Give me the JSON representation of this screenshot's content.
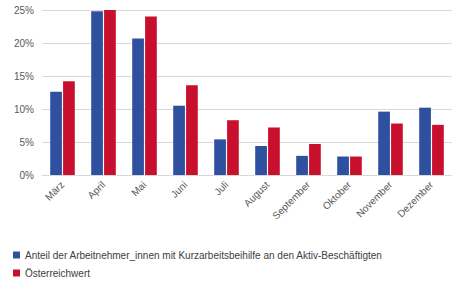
{
  "chart_data": {
    "type": "bar",
    "categories": [
      "März",
      "April",
      "Mai",
      "Juni",
      "Juli",
      "August",
      "September",
      "Oktober",
      "November",
      "Dezember"
    ],
    "series": [
      {
        "name": "Anteil der Arbeitnehmer_innen mit Kurzarbeitsbeihilfe an den Aktiv-Beschäftigten",
        "color": "#2f4f9f",
        "values": [
          12.6,
          24.8,
          20.7,
          10.5,
          5.4,
          4.4,
          2.9,
          2.8,
          9.6,
          10.2
        ]
      },
      {
        "name": "Österreichwert",
        "color": "#c8102e",
        "values": [
          14.2,
          25.0,
          24.0,
          13.6,
          8.3,
          7.2,
          4.7,
          2.8,
          7.8,
          7.6
        ]
      }
    ],
    "ylim": [
      0,
      25
    ],
    "yticks": [
      {
        "value": 0,
        "label": "0%"
      },
      {
        "value": 5,
        "label": "5%"
      },
      {
        "value": 10,
        "label": "10%"
      },
      {
        "value": 15,
        "label": "15%"
      },
      {
        "value": 20,
        "label": "20%"
      },
      {
        "value": 25,
        "label": "25%"
      }
    ],
    "grid": true,
    "legend": "bottom"
  }
}
